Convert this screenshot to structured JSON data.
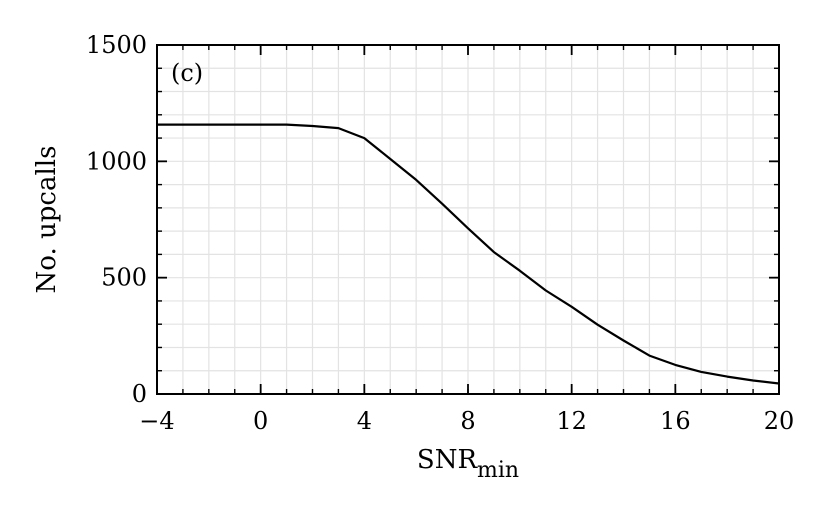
{
  "chart_data": {
    "type": "line",
    "panel_label": "(c)",
    "xlabel": "SNR",
    "xlabel_subscript": "min",
    "ylabel": "No. upcalls",
    "xlim": [
      -4,
      20
    ],
    "ylim": [
      0,
      1500
    ],
    "xticks": [
      -4,
      0,
      4,
      8,
      12,
      16,
      20
    ],
    "xtick_labels": [
      "−4",
      "0",
      "4",
      "8",
      "12",
      "16",
      "20"
    ],
    "yticks": [
      0,
      500,
      1000,
      1500
    ],
    "ytick_labels": [
      "0",
      "500",
      "1000",
      "1500"
    ],
    "x_minor_step": 1,
    "y_minor_step": 100,
    "grid": true,
    "series": [
      {
        "color": "#000000",
        "x": [
          -4,
          -3,
          -2,
          -1,
          0,
          1,
          2,
          3,
          4,
          5,
          6,
          7,
          8,
          9,
          10,
          11,
          12,
          13,
          14,
          15,
          16,
          17,
          18,
          19,
          20
        ],
        "y": [
          1158,
          1158,
          1158,
          1158,
          1158,
          1158,
          1152,
          1143,
          1100,
          1010,
          920,
          818,
          712,
          610,
          530,
          445,
          375,
          298,
          230,
          165,
          125,
          95,
          75,
          58,
          45
        ]
      }
    ]
  }
}
